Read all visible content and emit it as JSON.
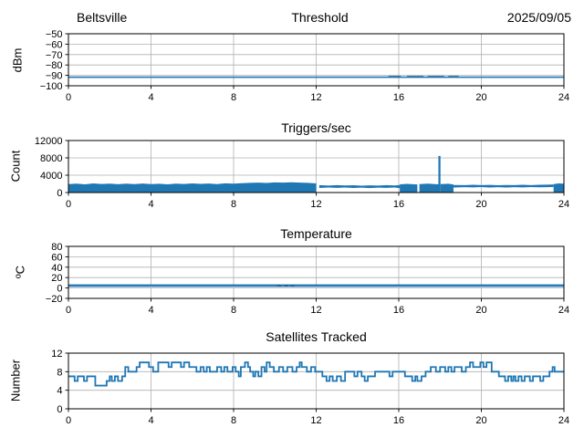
{
  "figure": {
    "background": "#ffffff",
    "accent_color": "#1f77b4",
    "light_accent_color": "#aec7e8",
    "dark_accent_color": "#155a8a",
    "grid_color": "#b0b0b0",
    "spine_color": "#000000"
  },
  "chart_data": [
    {
      "type": "line",
      "title": "Threshold",
      "title_left": "Beltsville",
      "title_right": "2025/09/05",
      "ylabel": "dBm",
      "xlabel": "",
      "xlim": [
        0,
        24
      ],
      "ylim": [
        -100,
        -50
      ],
      "xticks": [
        0,
        4,
        8,
        12,
        16,
        20,
        24
      ],
      "yticks": [
        -100,
        -90,
        -80,
        -70,
        -60,
        -50
      ],
      "grid": true,
      "legend": "none",
      "series": [
        {
          "name": "threshold-band",
          "type": "band",
          "color": "#1f77b4",
          "x": [
            0,
            24
          ],
          "hi": [
            -91.0,
            -91.0
          ],
          "lo": [
            -92.4,
            -92.4
          ]
        },
        {
          "name": "threshold-line",
          "type": "line",
          "color": "#1f77b4",
          "width": 1.2,
          "x": [
            0,
            24
          ],
          "y": [
            -91.7,
            -91.7
          ]
        },
        {
          "name": "threshold-dark-marks",
          "type": "segments",
          "color": "#155a8a",
          "width": 1,
          "y": -91.0,
          "spans": [
            [
              15.5,
              16.1
            ],
            [
              16.4,
              17.2
            ],
            [
              17.4,
              18.2
            ],
            [
              18.4,
              18.9
            ]
          ]
        }
      ]
    },
    {
      "type": "area",
      "title": "Triggers/sec",
      "ylabel": "Count",
      "xlabel": "",
      "xlim": [
        0,
        24
      ],
      "ylim": [
        0,
        12000
      ],
      "xticks": [
        0,
        4,
        8,
        12,
        16,
        20,
        24
      ],
      "yticks": [
        0,
        4000,
        8000,
        12000
      ],
      "grid": true,
      "legend": "none",
      "series": [
        {
          "name": "triggers-fill-1",
          "type": "area",
          "color": "#1f77b4",
          "x": [
            0,
            0.4,
            0.8,
            1.2,
            1.6,
            2,
            2.4,
            2.8,
            3.2,
            3.6,
            4,
            4.4,
            4.8,
            5.2,
            5.6,
            6,
            6.4,
            6.8,
            7.2,
            7.6,
            8,
            8.4,
            8.8,
            9.2,
            9.6,
            10,
            10.4,
            10.8,
            11.2,
            11.6,
            12
          ],
          "y": [
            1950,
            2050,
            1900,
            2100,
            1980,
            2060,
            1920,
            2040,
            1960,
            2080,
            1940,
            2020,
            1900,
            2060,
            1980,
            2100,
            2000,
            2080,
            1960,
            2120,
            2050,
            2150,
            2250,
            2300,
            2220,
            2350,
            2280,
            2380,
            2300,
            2250,
            2100
          ]
        },
        {
          "name": "triggers-band-1",
          "type": "band",
          "color": "#1f77b4",
          "x": [
            12.15,
            12.6,
            13,
            13.4,
            13.8,
            14.2,
            14.6,
            15,
            15.4,
            15.8,
            16.05
          ],
          "hi": [
            1700,
            1600,
            1700,
            1620,
            1680,
            1580,
            1660,
            1600,
            1700,
            1640,
            1750
          ],
          "lo": [
            1050,
            1150,
            1080,
            1160,
            1060,
            1140,
            1020,
            1120,
            1070,
            1150,
            1000
          ]
        },
        {
          "name": "triggers-fill-2a",
          "type": "area",
          "color": "#1f77b4",
          "x": [
            16.05,
            16.4,
            16.9
          ],
          "y": [
            1900,
            2000,
            1880
          ]
        },
        {
          "name": "triggers-fill-2b",
          "type": "area",
          "color": "#1f77b4",
          "x": [
            17.0,
            17.4,
            17.93
          ],
          "y": [
            1950,
            2050,
            1900
          ]
        },
        {
          "name": "triggers-fill-2c",
          "type": "area",
          "color": "#1f77b4",
          "x": [
            18.02,
            18.4,
            18.65
          ],
          "y": [
            1950,
            2020,
            1880
          ]
        },
        {
          "name": "trigger-spike",
          "type": "vbar",
          "color": "#1f77b4",
          "x": 17.97,
          "w": 0.1,
          "y0": 0,
          "y1": 8450
        },
        {
          "name": "triggers-band-2",
          "type": "band",
          "color": "#1f77b4",
          "x": [
            18.65,
            19.2,
            19.6,
            20,
            20.4,
            20.8,
            21.2,
            21.6,
            22,
            22.4,
            22.8,
            23.2,
            23.5
          ],
          "hi": [
            1750,
            1700,
            1780,
            1700,
            1760,
            1680,
            1740,
            1700,
            1780,
            1720,
            1800,
            1820,
            1880
          ],
          "lo": [
            1150,
            1250,
            1180,
            1260,
            1170,
            1240,
            1150,
            1230,
            1180,
            1260,
            1200,
            1250,
            1280
          ]
        },
        {
          "name": "triggers-fill-3",
          "type": "area",
          "color": "#1f77b4",
          "x": [
            23.5,
            23.75,
            24
          ],
          "y": [
            1950,
            2100,
            2050
          ]
        }
      ]
    },
    {
      "type": "line",
      "title": "Temperature",
      "ylabel": "ºC",
      "xlabel": "",
      "xlim": [
        0,
        24
      ],
      "ylim": [
        -20,
        80
      ],
      "xticks": [
        0,
        4,
        8,
        12,
        16,
        20,
        24
      ],
      "yticks": [
        -20,
        0,
        20,
        40,
        60,
        80
      ],
      "grid": true,
      "legend": "none",
      "series": [
        {
          "name": "temperature-secondary-line",
          "type": "line",
          "color": "#aec7e8",
          "width": 2,
          "x": [
            0,
            24
          ],
          "y": [
            2.5,
            2.5
          ]
        },
        {
          "name": "temperature-main-line",
          "type": "line",
          "color": "#1f77b4",
          "width": 2.2,
          "x": [
            0,
            24
          ],
          "y": [
            5,
            5
          ]
        },
        {
          "name": "temperature-dark-marks",
          "type": "segments",
          "color": "#155a8a",
          "width": 1.5,
          "y": 4.2,
          "spans": [
            [
              10.1,
              10.3
            ],
            [
              10.45,
              10.65
            ],
            [
              10.75,
              10.95
            ]
          ]
        }
      ]
    },
    {
      "type": "step",
      "title": "Satellites Tracked",
      "ylabel": "Number",
      "xlabel": "",
      "xlim": [
        0,
        24
      ],
      "ylim": [
        0,
        12
      ],
      "xticks": [
        0,
        4,
        8,
        12,
        16,
        20,
        24
      ],
      "yticks": [
        0,
        4,
        8,
        12
      ],
      "grid": true,
      "legend": "none",
      "series": [
        {
          "name": "satellites-steps",
          "type": "step",
          "color": "#1f77b4",
          "width": 1.8,
          "points": [
            [
              0,
              7
            ],
            [
              0.3,
              6
            ],
            [
              0.45,
              7
            ],
            [
              0.75,
              6
            ],
            [
              0.9,
              7
            ],
            [
              1.3,
              5
            ],
            [
              1.85,
              6
            ],
            [
              2.0,
              7
            ],
            [
              2.1,
              6
            ],
            [
              2.25,
              7
            ],
            [
              2.4,
              6
            ],
            [
              2.6,
              7
            ],
            [
              2.75,
              9
            ],
            [
              2.9,
              8
            ],
            [
              3.3,
              9
            ],
            [
              3.45,
              10
            ],
            [
              3.9,
              9
            ],
            [
              4.1,
              8
            ],
            [
              4.35,
              10
            ],
            [
              4.85,
              9
            ],
            [
              5.0,
              10
            ],
            [
              5.45,
              9
            ],
            [
              5.6,
              10
            ],
            [
              5.85,
              9
            ],
            [
              6.2,
              8
            ],
            [
              6.4,
              9
            ],
            [
              6.55,
              8
            ],
            [
              6.7,
              9
            ],
            [
              6.85,
              8
            ],
            [
              7.2,
              9
            ],
            [
              7.4,
              8
            ],
            [
              7.55,
              9
            ],
            [
              7.7,
              8
            ],
            [
              7.95,
              9
            ],
            [
              8.1,
              8
            ],
            [
              8.25,
              7
            ],
            [
              8.35,
              9
            ],
            [
              8.55,
              10
            ],
            [
              8.7,
              9
            ],
            [
              8.8,
              8
            ],
            [
              8.95,
              7
            ],
            [
              9.05,
              8
            ],
            [
              9.2,
              7
            ],
            [
              9.35,
              9
            ],
            [
              9.5,
              8
            ],
            [
              9.6,
              10
            ],
            [
              9.75,
              9
            ],
            [
              9.95,
              8
            ],
            [
              10.2,
              9
            ],
            [
              10.4,
              8
            ],
            [
              10.6,
              9
            ],
            [
              10.85,
              8
            ],
            [
              11.05,
              9
            ],
            [
              11.2,
              10
            ],
            [
              11.3,
              9
            ],
            [
              11.55,
              8
            ],
            [
              11.75,
              9
            ],
            [
              11.95,
              8
            ],
            [
              12.3,
              7
            ],
            [
              12.5,
              6
            ],
            [
              12.65,
              7
            ],
            [
              12.8,
              6
            ],
            [
              13.0,
              7
            ],
            [
              13.2,
              6
            ],
            [
              13.4,
              8
            ],
            [
              13.85,
              7
            ],
            [
              14.0,
              8
            ],
            [
              14.2,
              7
            ],
            [
              14.35,
              6
            ],
            [
              14.5,
              7
            ],
            [
              14.85,
              8
            ],
            [
              15.55,
              7
            ],
            [
              15.7,
              8
            ],
            [
              16.3,
              7
            ],
            [
              16.65,
              6
            ],
            [
              16.8,
              7
            ],
            [
              16.9,
              6
            ],
            [
              17.1,
              7
            ],
            [
              17.3,
              8
            ],
            [
              17.55,
              9
            ],
            [
              17.8,
              8
            ],
            [
              18.0,
              9
            ],
            [
              18.25,
              8
            ],
            [
              18.4,
              9
            ],
            [
              18.55,
              8
            ],
            [
              18.7,
              9
            ],
            [
              19.05,
              8
            ],
            [
              19.25,
              9
            ],
            [
              19.45,
              10
            ],
            [
              19.6,
              9
            ],
            [
              19.95,
              10
            ],
            [
              20.1,
              9
            ],
            [
              20.25,
              10
            ],
            [
              20.5,
              8
            ],
            [
              20.85,
              7
            ],
            [
              21.15,
              6
            ],
            [
              21.3,
              7
            ],
            [
              21.45,
              6
            ],
            [
              21.55,
              7
            ],
            [
              21.65,
              6
            ],
            [
              21.8,
              7
            ],
            [
              21.95,
              6
            ],
            [
              22.1,
              7
            ],
            [
              22.35,
              6
            ],
            [
              22.5,
              7
            ],
            [
              22.85,
              6
            ],
            [
              23.0,
              7
            ],
            [
              23.3,
              8
            ],
            [
              23.45,
              9
            ],
            [
              23.55,
              8
            ],
            [
              24,
              8
            ]
          ]
        }
      ]
    }
  ]
}
